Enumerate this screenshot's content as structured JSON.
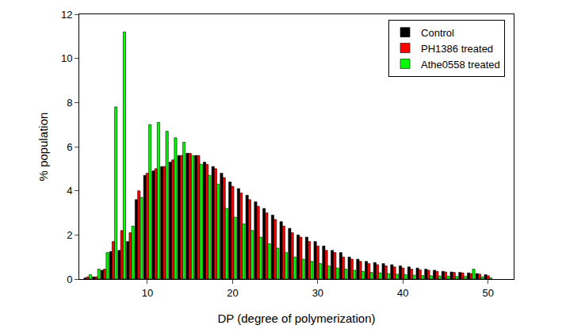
{
  "chart_data": {
    "type": "bar",
    "x_label": "DP (degree of polymerization)",
    "y_label": "% population",
    "x": [
      3,
      4,
      5,
      6,
      7,
      8,
      9,
      10,
      11,
      12,
      13,
      14,
      15,
      16,
      17,
      18,
      19,
      20,
      21,
      22,
      23,
      24,
      25,
      26,
      27,
      28,
      29,
      30,
      31,
      32,
      33,
      34,
      35,
      36,
      37,
      38,
      39,
      40,
      41,
      42,
      43,
      44,
      45,
      46,
      47,
      48,
      49,
      50
    ],
    "series": [
      {
        "name": "Control",
        "color": "#000000",
        "values": [
          0.05,
          0.1,
          0.4,
          1.25,
          1.3,
          1.7,
          3.6,
          4.7,
          4.9,
          5.1,
          5.3,
          5.6,
          5.7,
          5.6,
          5.3,
          5.1,
          4.8,
          4.4,
          4.1,
          3.8,
          3.5,
          3.2,
          2.9,
          2.6,
          2.3,
          2.0,
          1.9,
          1.7,
          1.5,
          1.3,
          1.2,
          1.0,
          0.9,
          0.8,
          0.75,
          0.7,
          0.65,
          0.6,
          0.55,
          0.5,
          0.45,
          0.4,
          0.35,
          0.32,
          0.3,
          0.28,
          0.25,
          0.2
        ]
      },
      {
        "name": "PH1386 treated",
        "color": "#ff0000",
        "values": [
          0.1,
          0.1,
          0.45,
          1.7,
          2.2,
          2.1,
          4.0,
          4.8,
          5.0,
          5.1,
          5.4,
          5.6,
          5.7,
          5.6,
          5.2,
          5.0,
          4.6,
          4.2,
          3.9,
          3.6,
          3.3,
          3.0,
          2.7,
          2.4,
          2.1,
          1.9,
          1.7,
          1.5,
          1.3,
          1.2,
          1.0,
          0.9,
          0.8,
          0.7,
          0.65,
          0.6,
          0.55,
          0.5,
          0.45,
          0.42,
          0.4,
          0.35,
          0.32,
          0.3,
          0.28,
          0.25,
          0.22,
          0.15
        ]
      },
      {
        "name": "Athe0558 treated",
        "color": "#00ff00",
        "values": [
          0.2,
          0.45,
          1.2,
          7.8,
          11.2,
          2.4,
          3.7,
          7.0,
          7.1,
          6.7,
          6.4,
          6.2,
          5.6,
          5.2,
          4.7,
          4.3,
          3.2,
          2.8,
          2.5,
          2.2,
          1.9,
          1.6,
          1.4,
          1.2,
          1.0,
          0.9,
          0.8,
          0.7,
          0.6,
          0.5,
          0.45,
          0.4,
          0.35,
          0.3,
          0.28,
          0.25,
          0.22,
          0.2,
          0.18,
          0.16,
          0.15,
          0.14,
          0.13,
          0.12,
          0.12,
          0.45,
          0.1,
          0.05
        ]
      }
    ],
    "xlim": [
      2,
      53
    ],
    "xticks": [
      10,
      20,
      30,
      40,
      50
    ],
    "ylim": [
      0,
      12
    ],
    "yticks": [
      0,
      2,
      4,
      6,
      8,
      10,
      12
    ],
    "grid": false,
    "legend": "upper right"
  }
}
